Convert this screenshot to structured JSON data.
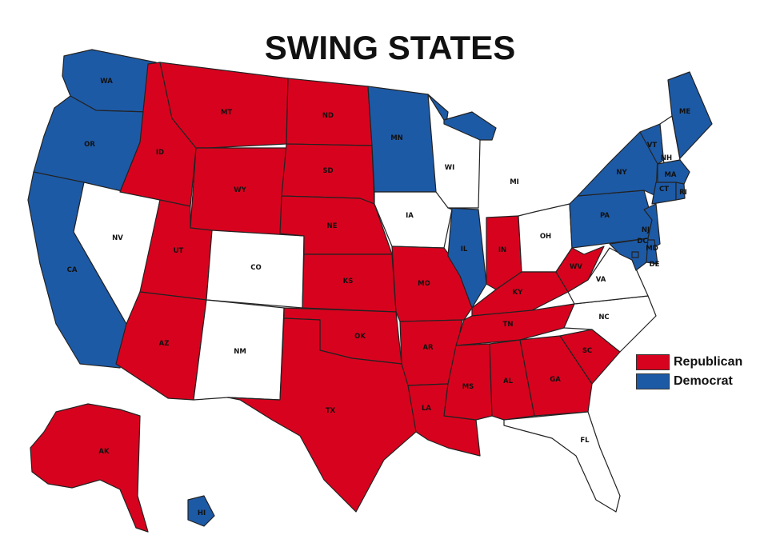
{
  "title": "SWING STATES",
  "colors": {
    "republican": "#d7031e",
    "democrat": "#1d5aa6",
    "swing": "#ffffff"
  },
  "legend": [
    {
      "label": "Republican",
      "color": "#d7031e"
    },
    {
      "label": "Democrat",
      "color": "#1d5aa6"
    }
  ],
  "states": [
    {
      "abbr": "WA",
      "party": "democrat"
    },
    {
      "abbr": "OR",
      "party": "democrat"
    },
    {
      "abbr": "CA",
      "party": "democrat"
    },
    {
      "abbr": "NV",
      "party": "swing"
    },
    {
      "abbr": "ID",
      "party": "republican"
    },
    {
      "abbr": "MT",
      "party": "republican"
    },
    {
      "abbr": "WY",
      "party": "republican"
    },
    {
      "abbr": "UT",
      "party": "republican"
    },
    {
      "abbr": "AZ",
      "party": "republican"
    },
    {
      "abbr": "CO",
      "party": "swing"
    },
    {
      "abbr": "NM",
      "party": "swing"
    },
    {
      "abbr": "ND",
      "party": "republican"
    },
    {
      "abbr": "SD",
      "party": "republican"
    },
    {
      "abbr": "NE",
      "party": "republican"
    },
    {
      "abbr": "KS",
      "party": "republican"
    },
    {
      "abbr": "OK",
      "party": "republican"
    },
    {
      "abbr": "TX",
      "party": "republican"
    },
    {
      "abbr": "MN",
      "party": "democrat"
    },
    {
      "abbr": "IA",
      "party": "swing"
    },
    {
      "abbr": "MO",
      "party": "republican"
    },
    {
      "abbr": "AR",
      "party": "republican"
    },
    {
      "abbr": "LA",
      "party": "republican"
    },
    {
      "abbr": "WI",
      "party": "swing"
    },
    {
      "abbr": "IL",
      "party": "democrat"
    },
    {
      "abbr": "MI",
      "party": "democrat"
    },
    {
      "abbr": "IN",
      "party": "republican"
    },
    {
      "abbr": "OH",
      "party": "swing"
    },
    {
      "abbr": "KY",
      "party": "republican"
    },
    {
      "abbr": "TN",
      "party": "republican"
    },
    {
      "abbr": "MS",
      "party": "republican"
    },
    {
      "abbr": "AL",
      "party": "republican"
    },
    {
      "abbr": "GA",
      "party": "republican"
    },
    {
      "abbr": "FL",
      "party": "swing"
    },
    {
      "abbr": "SC",
      "party": "republican"
    },
    {
      "abbr": "NC",
      "party": "swing"
    },
    {
      "abbr": "VA",
      "party": "swing"
    },
    {
      "abbr": "WV",
      "party": "republican"
    },
    {
      "abbr": "PA",
      "party": "democrat"
    },
    {
      "abbr": "NY",
      "party": "democrat"
    },
    {
      "abbr": "VT",
      "party": "democrat"
    },
    {
      "abbr": "NH",
      "party": "swing"
    },
    {
      "abbr": "ME",
      "party": "democrat"
    },
    {
      "abbr": "MA",
      "party": "democrat"
    },
    {
      "abbr": "CT",
      "party": "democrat"
    },
    {
      "abbr": "RI",
      "party": "democrat"
    },
    {
      "abbr": "NJ",
      "party": "democrat"
    },
    {
      "abbr": "DE",
      "party": "democrat"
    },
    {
      "abbr": "MD",
      "party": "democrat"
    },
    {
      "abbr": "DC",
      "party": "democrat"
    },
    {
      "abbr": "AK",
      "party": "republican"
    },
    {
      "abbr": "HI",
      "party": "democrat"
    }
  ]
}
